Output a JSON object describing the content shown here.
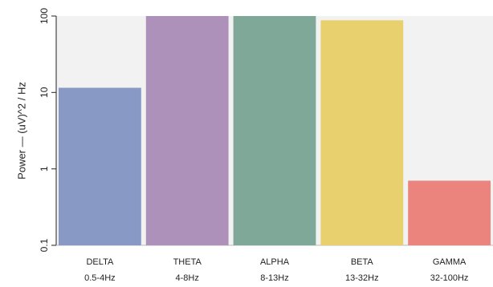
{
  "chart_data": {
    "type": "bar",
    "ylabel": "Power — (uV)^2 / Hz",
    "yscale": "log",
    "ylim": [
      0.1,
      100
    ],
    "yticks": [
      {
        "value": 0.1,
        "label": "0.1"
      },
      {
        "value": 1,
        "label": "1"
      },
      {
        "value": 10,
        "label": "10"
      },
      {
        "value": 100,
        "label": "100"
      }
    ],
    "categories": [
      {
        "name": "DELTA",
        "range": "0.5-4Hz"
      },
      {
        "name": "THETA",
        "range": "4-8Hz"
      },
      {
        "name": "ALPHA",
        "range": "8-13Hz"
      },
      {
        "name": "BETA",
        "range": "13-32Hz"
      },
      {
        "name": "GAMMA",
        "range": "32-100Hz"
      }
    ],
    "values": [
      11.5,
      100,
      100,
      88,
      0.7
    ],
    "colors": [
      "#8799c4",
      "#ad91ba",
      "#80a898",
      "#e8d06e",
      "#ea847c"
    ],
    "plot_background": "#f2f2f2",
    "grid": false,
    "legend": "none"
  }
}
